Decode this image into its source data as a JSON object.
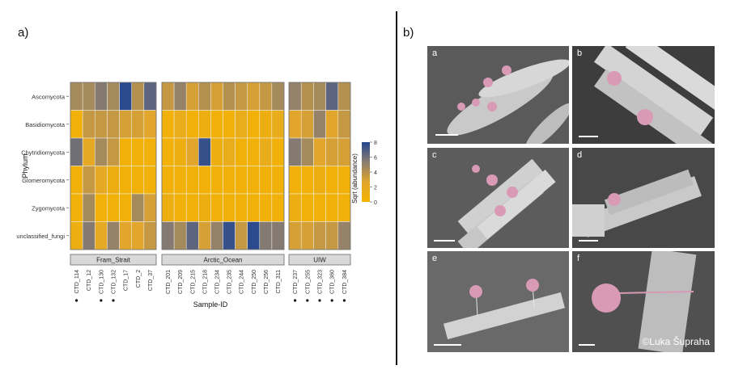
{
  "panel_labels": {
    "a": "a)",
    "b": "b)"
  },
  "chart_data": {
    "type": "heatmap",
    "ylabel": "Phylum",
    "xlabel": "Sample-ID",
    "legend_title": "Sqrt (abundance)",
    "legend_ticks": [
      "8",
      "6",
      "4",
      "2",
      "0"
    ],
    "colorscale": [
      "#f5b400",
      "#e0a52e",
      "#8a7d70",
      "#23468f"
    ],
    "vmin": 0,
    "vmax": 8,
    "rows": [
      "Ascomycota",
      "Basidiomycota",
      "Chytridiomycota",
      "Glomeromycota",
      "Zygomycota",
      "unclassified_fungi"
    ],
    "facets": [
      {
        "name": "Fram_Strait",
        "samples": [
          "CTD_114",
          "CTD_12",
          "CTD_130",
          "CTD_132",
          "CTD_17",
          "CTD_2",
          "CTD_37"
        ],
        "marked": [
          true,
          false,
          true,
          true,
          false,
          false,
          false
        ],
        "values": [
          [
            4.5,
            4.5,
            5.5,
            4.5,
            7.8,
            4.0,
            6.5
          ],
          [
            0.5,
            3.5,
            3.5,
            3.5,
            3.0,
            3.0,
            2.5
          ],
          [
            6.0,
            2.0,
            4.5,
            3.5,
            0.5,
            0.5,
            0.5
          ],
          [
            0.5,
            3.5,
            2.0,
            1.0,
            0.5,
            0.5,
            0.5
          ],
          [
            0.5,
            4.5,
            0.5,
            0.5,
            0.5,
            4.5,
            3.0
          ],
          [
            1.0,
            5.5,
            2.0,
            5.0,
            2.5,
            2.5,
            3.5
          ]
        ]
      },
      {
        "name": "Arctic_Ocean",
        "samples": [
          "CTD_201",
          "CTD_209",
          "CTD_215",
          "CTD_218",
          "CTD_234",
          "CTD_235",
          "CTD_244",
          "CTD_250",
          "CTD_256",
          "CTD_311"
        ],
        "marked": [
          false,
          false,
          false,
          false,
          false,
          false,
          false,
          false,
          false,
          false
        ],
        "values": [
          [
            3.5,
            5.0,
            3.0,
            4.0,
            3.0,
            4.0,
            3.5,
            3.0,
            3.5,
            4.5
          ],
          [
            0.5,
            1.5,
            0.5,
            1.0,
            0.5,
            0.5,
            1.5,
            0.5,
            1.0,
            1.5
          ],
          [
            0.5,
            1.0,
            2.5,
            7.5,
            1.0,
            1.5,
            0.5,
            0.5,
            1.5,
            0.5
          ],
          [
            0.5,
            0.5,
            0.5,
            0.5,
            0.5,
            0.5,
            0.5,
            0.5,
            0.5,
            0.5
          ],
          [
            1.0,
            0.5,
            0.5,
            1.0,
            0.5,
            0.5,
            0.5,
            0.5,
            0.5,
            0.5
          ],
          [
            5.5,
            4.5,
            6.5,
            3.0,
            5.0,
            7.5,
            3.5,
            7.8,
            5.5,
            5.5
          ]
        ]
      },
      {
        "name": "UIW",
        "samples": [
          "CTD_237",
          "CTD_255",
          "CTD_323",
          "CTD_360",
          "CTD_384"
        ],
        "marked": [
          true,
          true,
          true,
          true,
          true
        ],
        "values": [
          [
            5.0,
            4.0,
            4.5,
            6.5,
            4.0
          ],
          [
            2.5,
            3.0,
            5.0,
            2.5,
            3.5
          ],
          [
            5.5,
            4.5,
            2.5,
            3.0,
            3.0
          ],
          [
            0.5,
            0.5,
            1.0,
            0.5,
            0.5
          ],
          [
            1.0,
            0.5,
            0.5,
            0.5,
            0.5
          ],
          [
            3.0,
            3.0,
            3.5,
            3.5,
            5.0
          ]
        ]
      }
    ]
  },
  "micrographs": {
    "tiles": [
      {
        "letter": "a"
      },
      {
        "letter": "b"
      },
      {
        "letter": "c"
      },
      {
        "letter": "d"
      },
      {
        "letter": "e"
      },
      {
        "letter": "f"
      }
    ],
    "credit": "©Luka Šupraha"
  }
}
